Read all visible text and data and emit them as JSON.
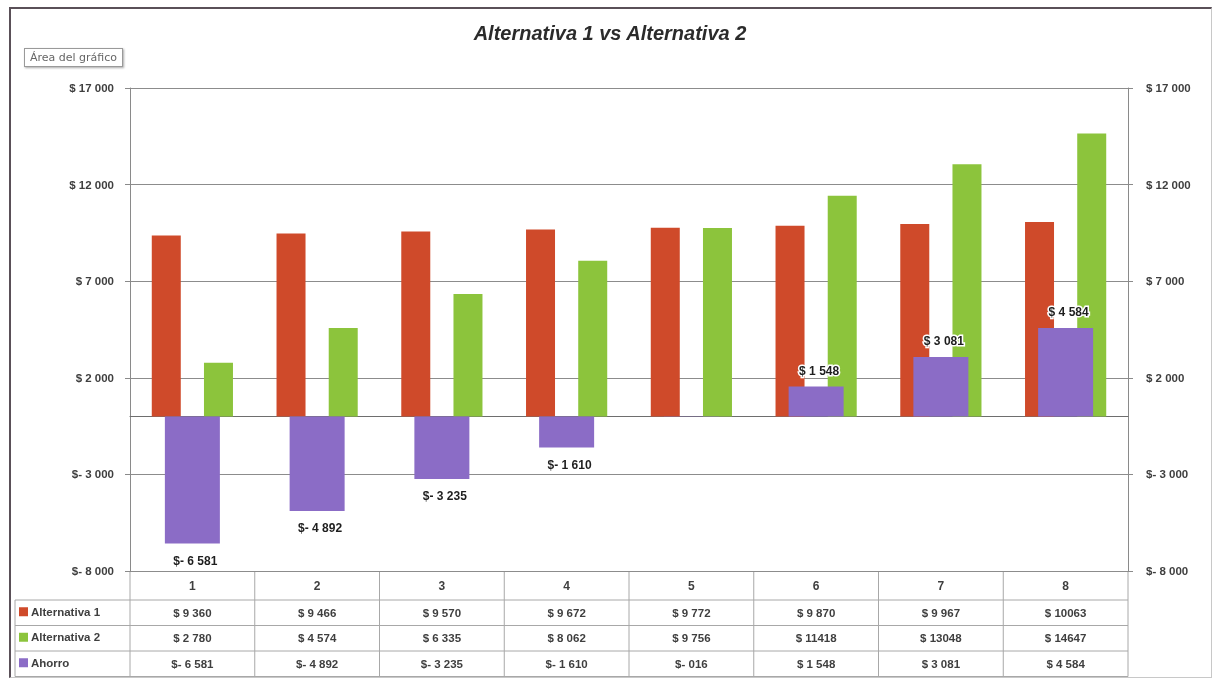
{
  "chart_data": {
    "type": "bar",
    "title": "Alternativa 1 vs Alternativa 2",
    "categories": [
      "1",
      "2",
      "3",
      "4",
      "5",
      "6",
      "7",
      "8"
    ],
    "series": [
      {
        "name": "Alternativa 1",
        "color": "#cf4a2a",
        "values": [
          9360,
          9466,
          9570,
          9672,
          9772,
          9870,
          9967,
          10063
        ],
        "value_labels": [
          "$ 9 360",
          "$ 9 466",
          "$ 9 570",
          "$ 9 672",
          "$ 9 772",
          "$ 9 870",
          "$ 9 967",
          "$ 10063"
        ]
      },
      {
        "name": "Alternativa 2",
        "color": "#8cc43c",
        "values": [
          2780,
          4574,
          6335,
          8062,
          9756,
          11418,
          13048,
          14647
        ],
        "value_labels": [
          "$ 2 780",
          "$ 4 574",
          "$ 6 335",
          "$ 8 062",
          "$ 9 756",
          "$ 11418",
          "$ 13048",
          "$ 14647"
        ]
      },
      {
        "name": "Ahorro",
        "color": "#8b6cc6",
        "axis": "y2",
        "values": [
          -6581,
          -4892,
          -3235,
          -1610,
          -16,
          1548,
          3081,
          4584
        ],
        "value_labels": [
          "$- 6 581",
          "$- 4 892",
          "$- 3 235",
          "$- 1 610",
          "$- 016",
          "$ 1 548",
          "$ 3 081",
          "$ 4 584"
        ]
      }
    ],
    "ylim": [
      -8000,
      17000
    ],
    "yticks": [
      {
        "value": -8000,
        "label": "$- 8 000"
      },
      {
        "value": -3000,
        "label": "$- 3 000"
      },
      {
        "value": 2000,
        "label": "$ 2 000"
      },
      {
        "value": 7000,
        "label": "$ 7 000"
      },
      {
        "value": 12000,
        "label": "$ 12 000"
      },
      {
        "value": 17000,
        "label": "$ 17 000"
      }
    ],
    "y2lim": [
      -8000,
      17000
    ],
    "y2ticks": [
      {
        "value": -8000,
        "label": "$- 8 000"
      },
      {
        "value": -3000,
        "label": "$- 3 000"
      },
      {
        "value": 2000,
        "label": "$ 2 000"
      },
      {
        "value": 7000,
        "label": "$ 7 000"
      },
      {
        "value": 12000,
        "label": "$ 12 000"
      },
      {
        "value": 17000,
        "label": "$ 17 000"
      }
    ],
    "grid": "y",
    "legend": "bottom left",
    "annotations": [
      "Área del gráfico",
      {
        "text": "$- 6 581",
        "x": "1",
        "y": -6581
      },
      {
        "text": "$- 4 892",
        "x": "2",
        "y": -4892
      },
      {
        "text": "$- 3 235",
        "x": "3",
        "y": -3235
      },
      {
        "text": "$- 1 610",
        "x": "4",
        "y": -1610
      },
      {
        "text": "$ 1 548",
        "x": "6",
        "y": 1548
      },
      {
        "text": "$ 3 081",
        "x": "7",
        "y": 3081
      },
      {
        "text": "$ 4 584",
        "x": "8",
        "y": 4584
      }
    ]
  }
}
